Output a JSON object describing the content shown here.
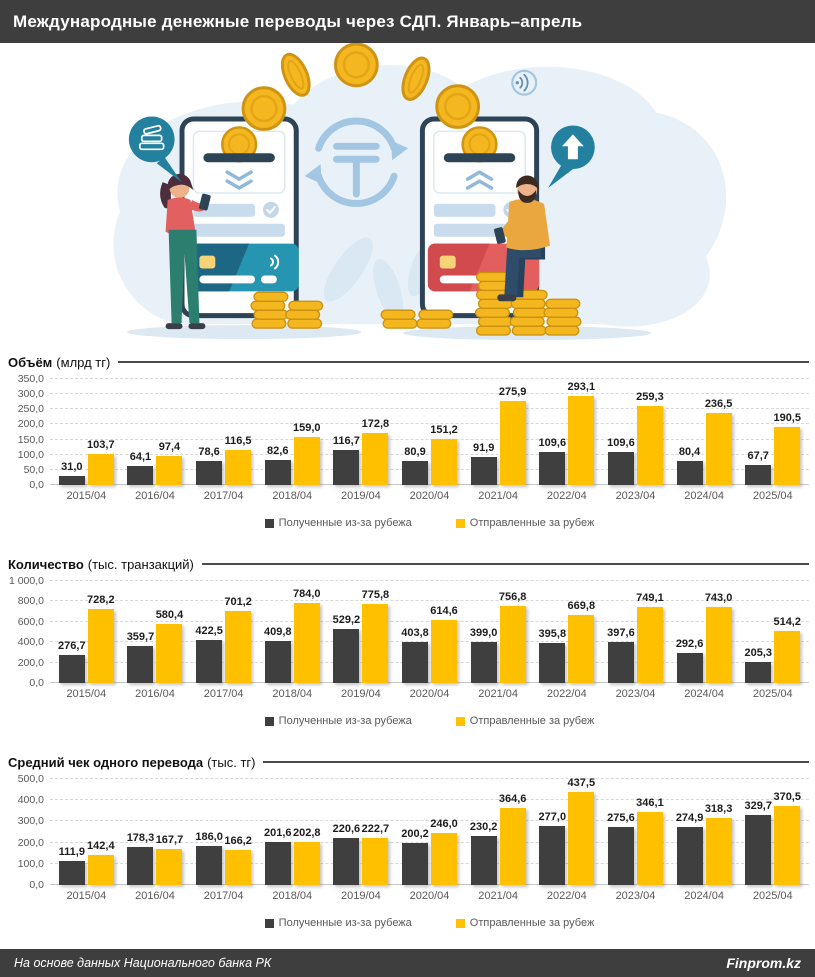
{
  "header": {
    "title": "Международные денежные переводы через СДП. Январь–апрель"
  },
  "footer": {
    "source": "На основе данных Национального банка РК",
    "brand": "Finprom.kz"
  },
  "colors": {
    "header_bg": "#3e3e3e",
    "received_bar": "#3f3f3f",
    "sent_bar": "#ffc000",
    "value_label": "#1d1d1d",
    "axis_label": "#595959",
    "illustration_blue": "#e9f1f8",
    "illustration_teal": "#23809f",
    "coin_gold": "#f4b71f"
  },
  "legend": {
    "received": "Полученные из-за рубежа",
    "sent": "Отправленные за рубеж"
  },
  "illustration": {
    "icons": [
      "smartphone",
      "tenge-exchange",
      "coin",
      "coin-stack",
      "cash-speech-bubble",
      "up-arrow-speech-bubble",
      "contactless",
      "woman-with-phone",
      "man-with-phone"
    ]
  },
  "chart_data": [
    {
      "type": "bar",
      "title": "Объём",
      "unit": "(млрд тг)",
      "grid": true,
      "legend_position": "bottom",
      "ymax": 350,
      "ystep": 50,
      "yticks": [
        "0,0",
        "50,0",
        "100,0",
        "150,0",
        "200,0",
        "250,0",
        "300,0",
        "350,0"
      ],
      "categories": [
        "2015/04",
        "2016/04",
        "2017/04",
        "2018/04",
        "2019/04",
        "2020/04",
        "2021/04",
        "2022/04",
        "2023/04",
        "2024/04",
        "2025/04"
      ],
      "series": [
        {
          "name": "Полученные из-за рубежа",
          "color": "#3f3f3f",
          "values": [
            31.0,
            64.1,
            78.6,
            82.6,
            116.7,
            80.9,
            91.9,
            109.6,
            109.6,
            80.4,
            67.7
          ],
          "labels": [
            "31,0",
            "64,1",
            "78,6",
            "82,6",
            "116,7",
            "80,9",
            "91,9",
            "109,6",
            "109,6",
            "80,4",
            "67,7"
          ]
        },
        {
          "name": "Отправленные за рубеж",
          "color": "#ffc000",
          "values": [
            103.7,
            97.4,
            116.5,
            159.0,
            172.8,
            151.2,
            275.9,
            293.1,
            259.3,
            236.5,
            190.5
          ],
          "labels": [
            "103,7",
            "97,4",
            "116,5",
            "159,0",
            "172,8",
            "151,2",
            "275,9",
            "293,1",
            "259,3",
            "236,5",
            "190,5"
          ]
        }
      ]
    },
    {
      "type": "bar",
      "title": "Количество",
      "unit": "(тыс. транзакций)",
      "grid": true,
      "legend_position": "bottom",
      "ymax": 1000,
      "ystep": 200,
      "yticks": [
        "0,0",
        "200,0",
        "400,0",
        "600,0",
        "800,0",
        "1 000,0"
      ],
      "categories": [
        "2015/04",
        "2016/04",
        "2017/04",
        "2018/04",
        "2019/04",
        "2020/04",
        "2021/04",
        "2022/04",
        "2023/04",
        "2024/04",
        "2025/04"
      ],
      "series": [
        {
          "name": "Полученные из-за рубежа",
          "color": "#3f3f3f",
          "values": [
            276.7,
            359.7,
            422.5,
            409.8,
            529.2,
            403.8,
            399.0,
            395.8,
            397.6,
            292.6,
            205.3
          ],
          "labels": [
            "276,7",
            "359,7",
            "422,5",
            "409,8",
            "529,2",
            "403,8",
            "399,0",
            "395,8",
            "397,6",
            "292,6",
            "205,3"
          ]
        },
        {
          "name": "Отправленные за рубеж",
          "color": "#ffc000",
          "values": [
            728.2,
            580.4,
            701.2,
            784.0,
            775.8,
            614.6,
            756.8,
            669.8,
            749.1,
            743.0,
            514.2
          ],
          "labels": [
            "728,2",
            "580,4",
            "701,2",
            "784,0",
            "775,8",
            "614,6",
            "756,8",
            "669,8",
            "749,1",
            "743,0",
            "514,2"
          ]
        }
      ]
    },
    {
      "type": "bar",
      "title": "Средний чек одного перевода",
      "unit": "(тыс. тг)",
      "grid": true,
      "legend_position": "bottom",
      "ymax": 500,
      "ystep": 100,
      "yticks": [
        "0,0",
        "100,0",
        "200,0",
        "300,0",
        "400,0",
        "500,0"
      ],
      "categories": [
        "2015/04",
        "2016/04",
        "2017/04",
        "2018/04",
        "2019/04",
        "2020/04",
        "2021/04",
        "2022/04",
        "2023/04",
        "2024/04",
        "2025/04"
      ],
      "series": [
        {
          "name": "Полученные из-за рубежа",
          "color": "#3f3f3f",
          "values": [
            111.9,
            178.3,
            186.0,
            201.6,
            220.6,
            200.2,
            230.2,
            277.0,
            275.6,
            274.9,
            329.7
          ],
          "labels": [
            "111,9",
            "178,3",
            "186,0",
            "201,6",
            "220,6",
            "200,2",
            "230,2",
            "277,0",
            "275,6",
            "274,9",
            "329,7"
          ]
        },
        {
          "name": "Отправленные за рубеж",
          "color": "#ffc000",
          "values": [
            142.4,
            167.7,
            166.2,
            202.8,
            222.7,
            246.0,
            364.6,
            437.5,
            346.1,
            318.3,
            370.5
          ],
          "labels": [
            "142,4",
            "167,7",
            "166,2",
            "202,8",
            "222,7",
            "246,0",
            "364,6",
            "437,5",
            "346,1",
            "318,3",
            "370,5"
          ]
        }
      ]
    }
  ]
}
